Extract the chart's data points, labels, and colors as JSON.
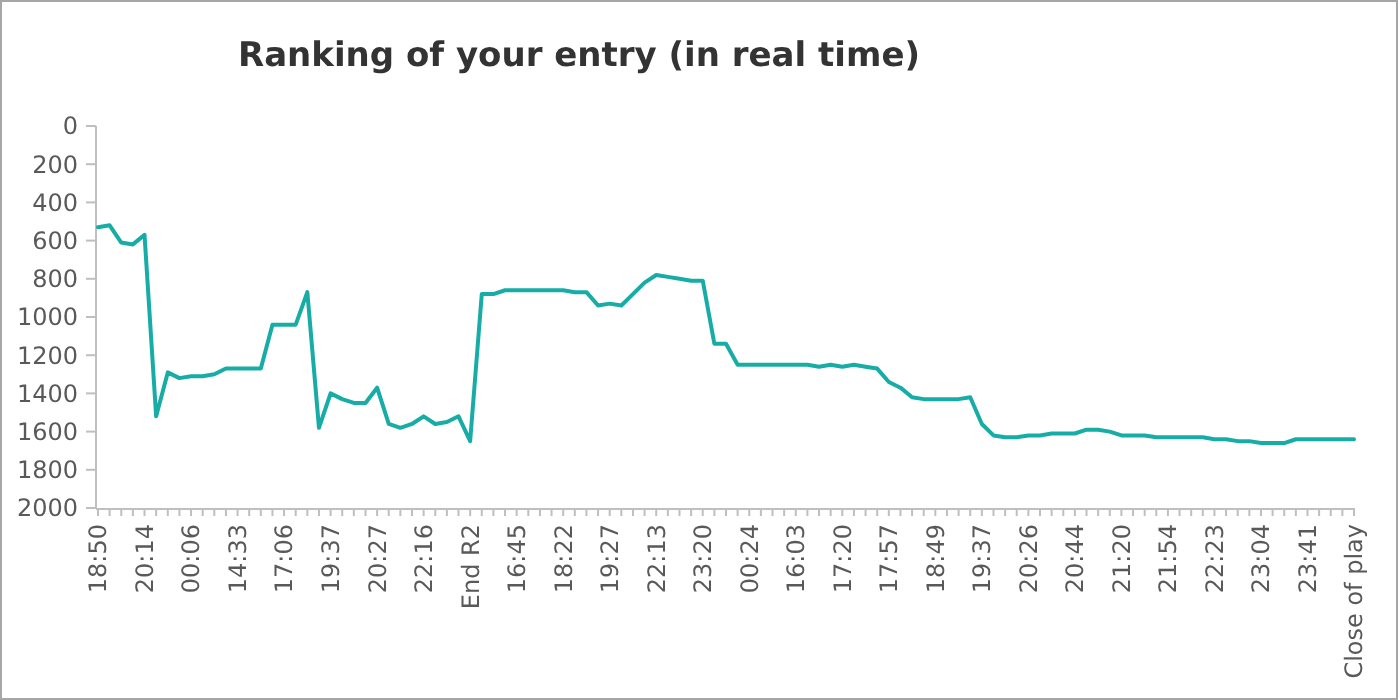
{
  "chart_data": {
    "type": "line",
    "title": "Ranking of your entry (in real time)",
    "categories": [
      "18:50",
      null,
      null,
      null,
      "20:14",
      null,
      null,
      null,
      "00:06",
      null,
      null,
      null,
      "14:33",
      null,
      null,
      null,
      "17:06",
      null,
      null,
      null,
      "19:37",
      null,
      null,
      null,
      "20:27",
      null,
      null,
      null,
      "22:16",
      null,
      null,
      null,
      "End R2",
      null,
      null,
      null,
      "16:45",
      null,
      null,
      null,
      "18:22",
      null,
      null,
      null,
      "19:27",
      null,
      null,
      null,
      "22:13",
      null,
      null,
      null,
      "23:20",
      null,
      null,
      null,
      "00:24",
      null,
      null,
      null,
      "16:03",
      null,
      null,
      null,
      "17:20",
      null,
      null,
      null,
      "17:57",
      null,
      null,
      null,
      "18:49",
      null,
      null,
      null,
      "19:37",
      null,
      null,
      null,
      "20:26",
      null,
      null,
      null,
      "20:44",
      null,
      null,
      null,
      "21:20",
      null,
      null,
      null,
      "21:54",
      null,
      null,
      null,
      "22:23",
      null,
      null,
      null,
      "23:04",
      null,
      null,
      null,
      "23:41",
      null,
      null,
      null,
      "Close of play"
    ],
    "series": [
      {
        "color": "#17ada6",
        "values": [
          530,
          520,
          610,
          620,
          570,
          1520,
          1290,
          1320,
          1310,
          1310,
          1300,
          1270,
          1270,
          1270,
          1270,
          1040,
          1040,
          1040,
          870,
          1580,
          1400,
          1430,
          1450,
          1450,
          1370,
          1560,
          1580,
          1560,
          1520,
          1560,
          1550,
          1520,
          1650,
          880,
          880,
          860,
          860,
          860,
          860,
          860,
          860,
          870,
          870,
          940,
          930,
          940,
          880,
          820,
          780,
          790,
          800,
          810,
          810,
          1140,
          1140,
          1250,
          1250,
          1250,
          1250,
          1250,
          1250,
          1250,
          1260,
          1250,
          1260,
          1250,
          1260,
          1270,
          1340,
          1370,
          1420,
          1430,
          1430,
          1430,
          1430,
          1420,
          1560,
          1620,
          1630,
          1630,
          1620,
          1620,
          1610,
          1610,
          1610,
          1590,
          1590,
          1600,
          1620,
          1620,
          1620,
          1630,
          1630,
          1630,
          1630,
          1630,
          1640,
          1640,
          1650,
          1650,
          1660,
          1660,
          1660,
          1640,
          1640,
          1640,
          1640,
          1640,
          1640
        ]
      }
    ],
    "ylim": [
      2000,
      0
    ],
    "yticks": [
      0,
      200,
      400,
      600,
      800,
      1000,
      1200,
      1400,
      1600,
      1800,
      2000
    ],
    "grid": false,
    "marker": "none",
    "line_style": "solid"
  }
}
